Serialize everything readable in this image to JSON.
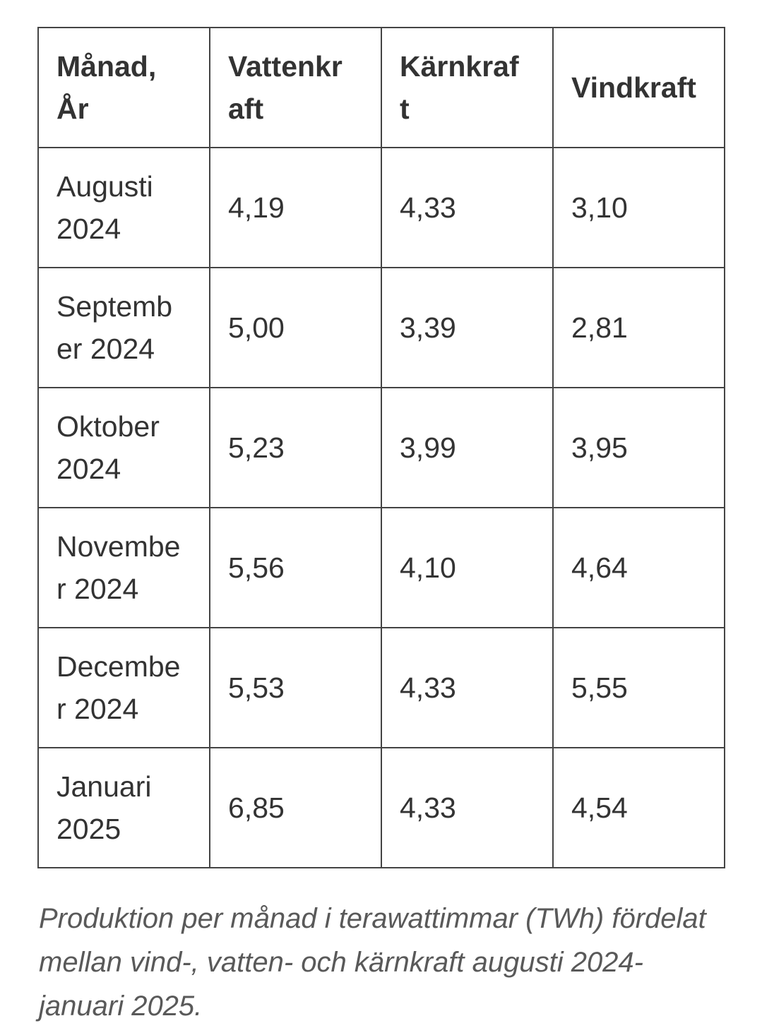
{
  "colors": {
    "text": "#333333",
    "border": "#444444",
    "caption_text": "#595959",
    "background": "#ffffff"
  },
  "table": {
    "headers": [
      "Månad, År",
      "Vattenkraft",
      "Kärnkraft",
      "Vindkraft"
    ],
    "rows": [
      {
        "cells": [
          "Augusti 2024",
          "4,19",
          "4,33",
          "3,10"
        ]
      },
      {
        "cells": [
          "September 2024",
          "5,00",
          "3,39",
          "2,81"
        ]
      },
      {
        "cells": [
          "Oktober 2024",
          "5,23",
          "3,99",
          "3,95"
        ]
      },
      {
        "cells": [
          "November 2024",
          "5,56",
          "4,10",
          "4,64"
        ]
      },
      {
        "cells": [
          "December 2024",
          "5,53",
          "4,33",
          "5,55"
        ]
      },
      {
        "cells": [
          "Januari 2025",
          "6,85",
          "4,33",
          "4,54"
        ]
      }
    ]
  },
  "caption": "Produktion per månad i terawattimmar (TWh) fördelat mellan vind-, vatten- och kärnkraft augusti 2024-januari 2025.",
  "chart_data": {
    "type": "table",
    "title": "Produktion per månad i terawattimmar (TWh)",
    "categories": [
      "Augusti 2024",
      "September 2024",
      "Oktober 2024",
      "November 2024",
      "December 2024",
      "Januari 2025"
    ],
    "series": [
      {
        "name": "Vattenkraft",
        "values": [
          4.19,
          5.0,
          5.23,
          5.56,
          5.53,
          6.85
        ]
      },
      {
        "name": "Kärnkraft",
        "values": [
          4.33,
          3.39,
          3.99,
          4.1,
          4.33,
          4.33
        ]
      },
      {
        "name": "Vindkraft",
        "values": [
          3.1,
          2.81,
          3.95,
          4.64,
          5.55,
          4.54
        ]
      }
    ]
  }
}
